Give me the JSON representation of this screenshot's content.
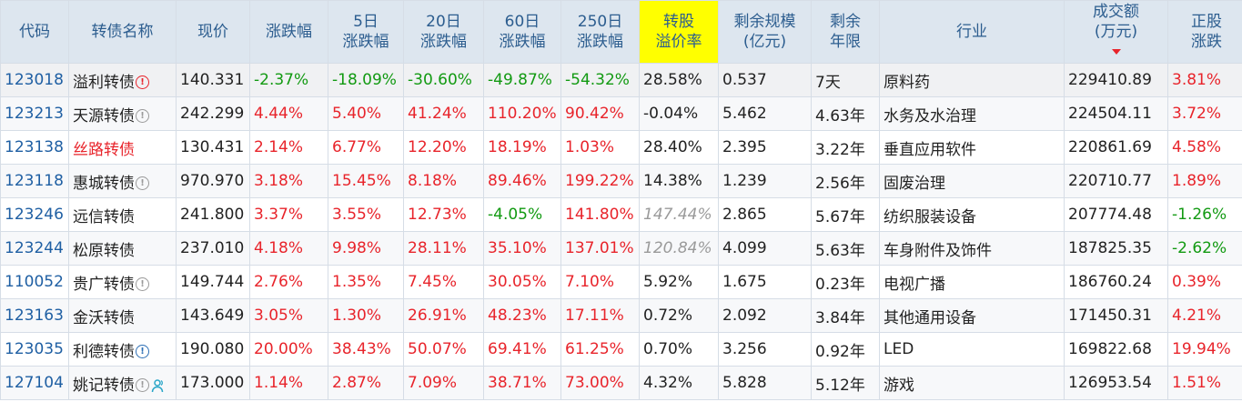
{
  "headers": {
    "code": "代码",
    "name": "转债名称",
    "price": "现价",
    "chg": "涨跌幅",
    "chg5_l1": "5日",
    "chg5_l2": "涨跌幅",
    "chg20_l1": "20日",
    "chg20_l2": "涨跌幅",
    "chg60_l1": "60日",
    "chg60_l2": "涨跌幅",
    "chg250_l1": "250日",
    "chg250_l2": "涨跌幅",
    "premium_l1": "转股",
    "premium_l2": "溢价率",
    "remain_scale_l1": "剩余规模",
    "remain_scale_l2": "(亿元)",
    "remain_years_l1": "剩余",
    "remain_years_l2": "年限",
    "industry": "行业",
    "turnover_l1": "成交额",
    "turnover_l2": "(万元)",
    "stock_chg_l1": "正股",
    "stock_chg_l2": "涨跌"
  },
  "rows": [
    {
      "code": "123018",
      "name": "溢利转债",
      "price": "140.331",
      "chg": "-2.37%",
      "chg5": "-18.09%",
      "chg20": "-30.60%",
      "chg60": "-49.87%",
      "chg250": "-54.32%",
      "premium": "28.58%",
      "remain_scale": "0.537",
      "remain_years": "7天",
      "industry": "原料药",
      "turnover": "229410.89",
      "stock_chg": "3.81%",
      "icon": "alert-red-icon"
    },
    {
      "code": "123213",
      "name": "天源转债",
      "price": "242.299",
      "chg": "4.44%",
      "chg5": "5.40%",
      "chg20": "41.24%",
      "chg60": "110.20%",
      "chg250": "90.42%",
      "premium": "-0.04%",
      "remain_scale": "5.462",
      "remain_years": "4.63年",
      "industry": "水务及水治理",
      "turnover": "224504.11",
      "stock_chg": "3.72%",
      "icon": "info-grey-icon"
    },
    {
      "code": "123138",
      "name": "丝路转债",
      "price": "130.431",
      "chg": "2.14%",
      "chg5": "6.77%",
      "chg20": "12.20%",
      "chg60": "18.19%",
      "chg250": "1.03%",
      "premium": "28.40%",
      "remain_scale": "2.395",
      "remain_years": "3.22年",
      "industry": "垂直应用软件",
      "turnover": "220861.69",
      "stock_chg": "4.58%",
      "icon": ""
    },
    {
      "code": "123118",
      "name": "惠城转债",
      "price": "970.970",
      "chg": "3.18%",
      "chg5": "15.45%",
      "chg20": "8.18%",
      "chg60": "89.46%",
      "chg250": "199.22%",
      "premium": "14.38%",
      "remain_scale": "1.239",
      "remain_years": "2.56年",
      "industry": "固废治理",
      "turnover": "220710.77",
      "stock_chg": "1.89%",
      "icon": "info-grey-icon"
    },
    {
      "code": "123246",
      "name": "远信转债",
      "price": "241.800",
      "chg": "3.37%",
      "chg5": "3.55%",
      "chg20": "12.73%",
      "chg60": "-4.05%",
      "chg250": "141.80%",
      "premium": "147.44%",
      "remain_scale": "2.865",
      "remain_years": "5.67年",
      "industry": "纺织服装设备",
      "turnover": "207774.48",
      "stock_chg": "-1.26%",
      "icon": ""
    },
    {
      "code": "123244",
      "name": "松原转债",
      "price": "237.010",
      "chg": "4.18%",
      "chg5": "9.98%",
      "chg20": "28.11%",
      "chg60": "35.10%",
      "chg250": "137.01%",
      "premium": "120.84%",
      "remain_scale": "4.099",
      "remain_years": "5.63年",
      "industry": "车身附件及饰件",
      "turnover": "187825.35",
      "stock_chg": "-2.62%",
      "icon": ""
    },
    {
      "code": "110052",
      "name": "贵广转债",
      "price": "149.744",
      "chg": "2.76%",
      "chg5": "1.35%",
      "chg20": "7.45%",
      "chg60": "30.05%",
      "chg250": "7.10%",
      "premium": "5.92%",
      "remain_scale": "1.675",
      "remain_years": "0.23年",
      "industry": "电视广播",
      "turnover": "186760.24",
      "stock_chg": "0.39%",
      "icon": "info-grey-icon"
    },
    {
      "code": "123163",
      "name": "金沃转债",
      "price": "143.649",
      "chg": "3.05%",
      "chg5": "1.30%",
      "chg20": "26.91%",
      "chg60": "48.23%",
      "chg250": "17.11%",
      "premium": "0.72%",
      "remain_scale": "2.092",
      "remain_years": "3.84年",
      "industry": "其他通用设备",
      "turnover": "171450.31",
      "stock_chg": "4.21%",
      "icon": ""
    },
    {
      "code": "123035",
      "name": "利德转债",
      "price": "190.080",
      "chg": "20.00%",
      "chg5": "38.43%",
      "chg20": "50.07%",
      "chg60": "69.41%",
      "chg250": "61.25%",
      "premium": "0.70%",
      "remain_scale": "3.256",
      "remain_years": "0.92年",
      "industry": "LED",
      "turnover": "169822.68",
      "stock_chg": "19.94%",
      "icon": "alert-blue-icon"
    },
    {
      "code": "127104",
      "name": "姚记转债",
      "price": "173.000",
      "chg": "1.14%",
      "chg5": "2.87%",
      "chg20": "7.09%",
      "chg60": "38.71%",
      "chg250": "73.00%",
      "premium": "4.32%",
      "remain_scale": "5.828",
      "remain_years": "5.12年",
      "industry": "游戏",
      "turnover": "126953.54",
      "stock_chg": "1.51%",
      "icon": "info-grey-icon",
      "icon2": "person-icon"
    }
  ],
  "colors": {
    "up": "#e8242b",
    "down": "#129a12",
    "header_bg": "#dde6ef",
    "premium_highlight": "#ffff00"
  }
}
